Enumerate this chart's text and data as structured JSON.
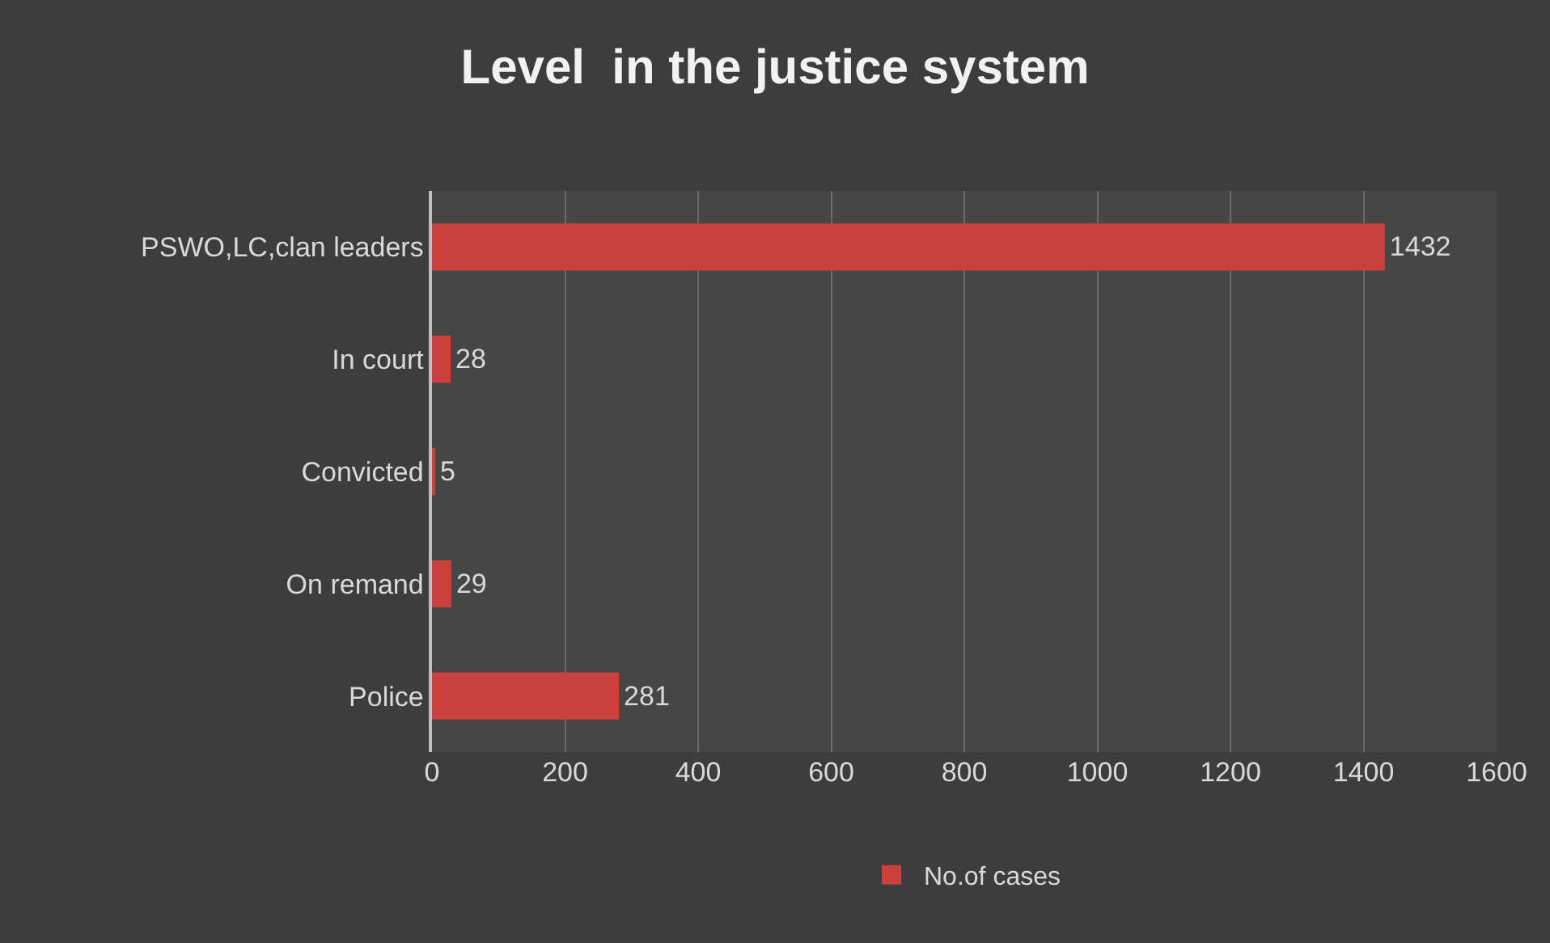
{
  "chart_data": {
    "type": "bar",
    "orientation": "horizontal",
    "title": "Level  in the justice system",
    "categories": [
      "PSWO,LC,clan leaders",
      "In court",
      "Convicted",
      "On remand",
      "Police"
    ],
    "series": [
      {
        "name": "No.of cases",
        "color": "#c9403c",
        "values": [
          1432,
          28,
          5,
          29,
          281
        ]
      }
    ],
    "xlim": [
      0,
      1600
    ],
    "xticks": [
      0,
      200,
      400,
      600,
      800,
      1000,
      1200,
      1400,
      1600
    ],
    "grid": "x",
    "legend": "bottom",
    "data_labels": true
  }
}
